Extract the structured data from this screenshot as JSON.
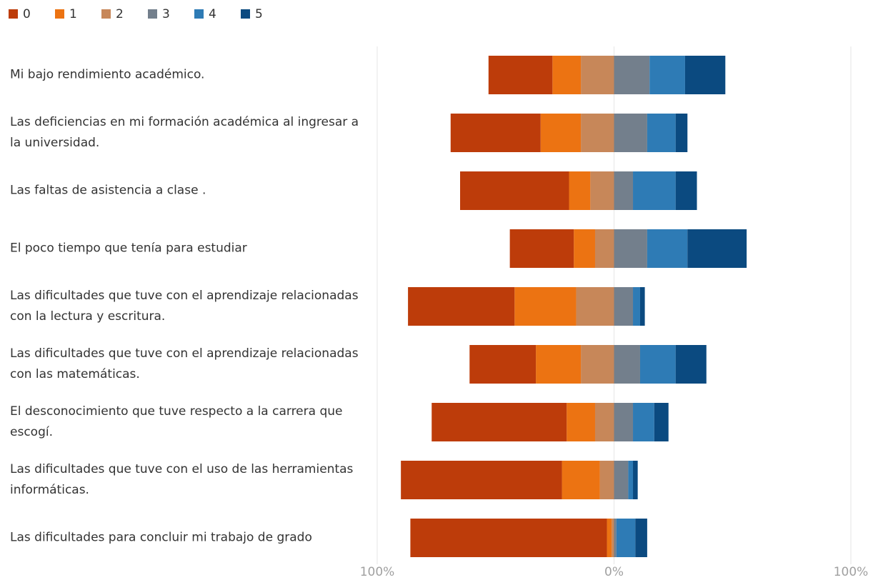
{
  "chart_data": {
    "type": "diverging-bar",
    "categories": [
      "Mi bajo rendimiento académico.",
      "Las deficiencias en mi formación académica al ingresar a la universidad.",
      "Las faltas de asistencia a clase .",
      "El poco tiempo que tenía para estudiar",
      "Las dificultades que tuve con el aprendizaje relacionadas  con la lectura y escritura.",
      "Las dificultades que tuve con el aprendizaje relacionadas  con las matemáticas.",
      "El desconocimiento que tuve respecto a la carrera que escogí.",
      "Las dificultades que tuve con el uso de las herramientas informáticas.",
      "Las dificultades para concluir mi trabajo de grado"
    ],
    "series": [
      {
        "name": "0",
        "color": "#bd3c0a",
        "values": [
          27,
          38,
          46,
          27,
          45,
          28,
          57,
          68,
          83
        ]
      },
      {
        "name": "1",
        "color": "#ec7312",
        "values": [
          12,
          17,
          9,
          9,
          26,
          19,
          12,
          16,
          2
        ]
      },
      {
        "name": "2",
        "color": "#c78759",
        "values": [
          14,
          14,
          10,
          8,
          16,
          14,
          8,
          6,
          1
        ]
      },
      {
        "name": "3",
        "color": "#737f8c",
        "values": [
          15,
          14,
          8,
          14,
          8,
          11,
          8,
          6,
          1
        ]
      },
      {
        "name": "4",
        "color": "#2e7bb5",
        "values": [
          15,
          12,
          18,
          17,
          3,
          15,
          9,
          2,
          8
        ]
      },
      {
        "name": "5",
        "color": "#0b4a80",
        "values": [
          17,
          5,
          9,
          25,
          2,
          13,
          6,
          2,
          5
        ]
      }
    ],
    "xlim": [
      -100,
      100
    ],
    "xticks": [
      {
        "value": -100,
        "label": "100%"
      },
      {
        "value": 0,
        "label": "0%"
      },
      {
        "value": 100,
        "label": "100%"
      }
    ],
    "grid": true,
    "legend": "top-left"
  }
}
